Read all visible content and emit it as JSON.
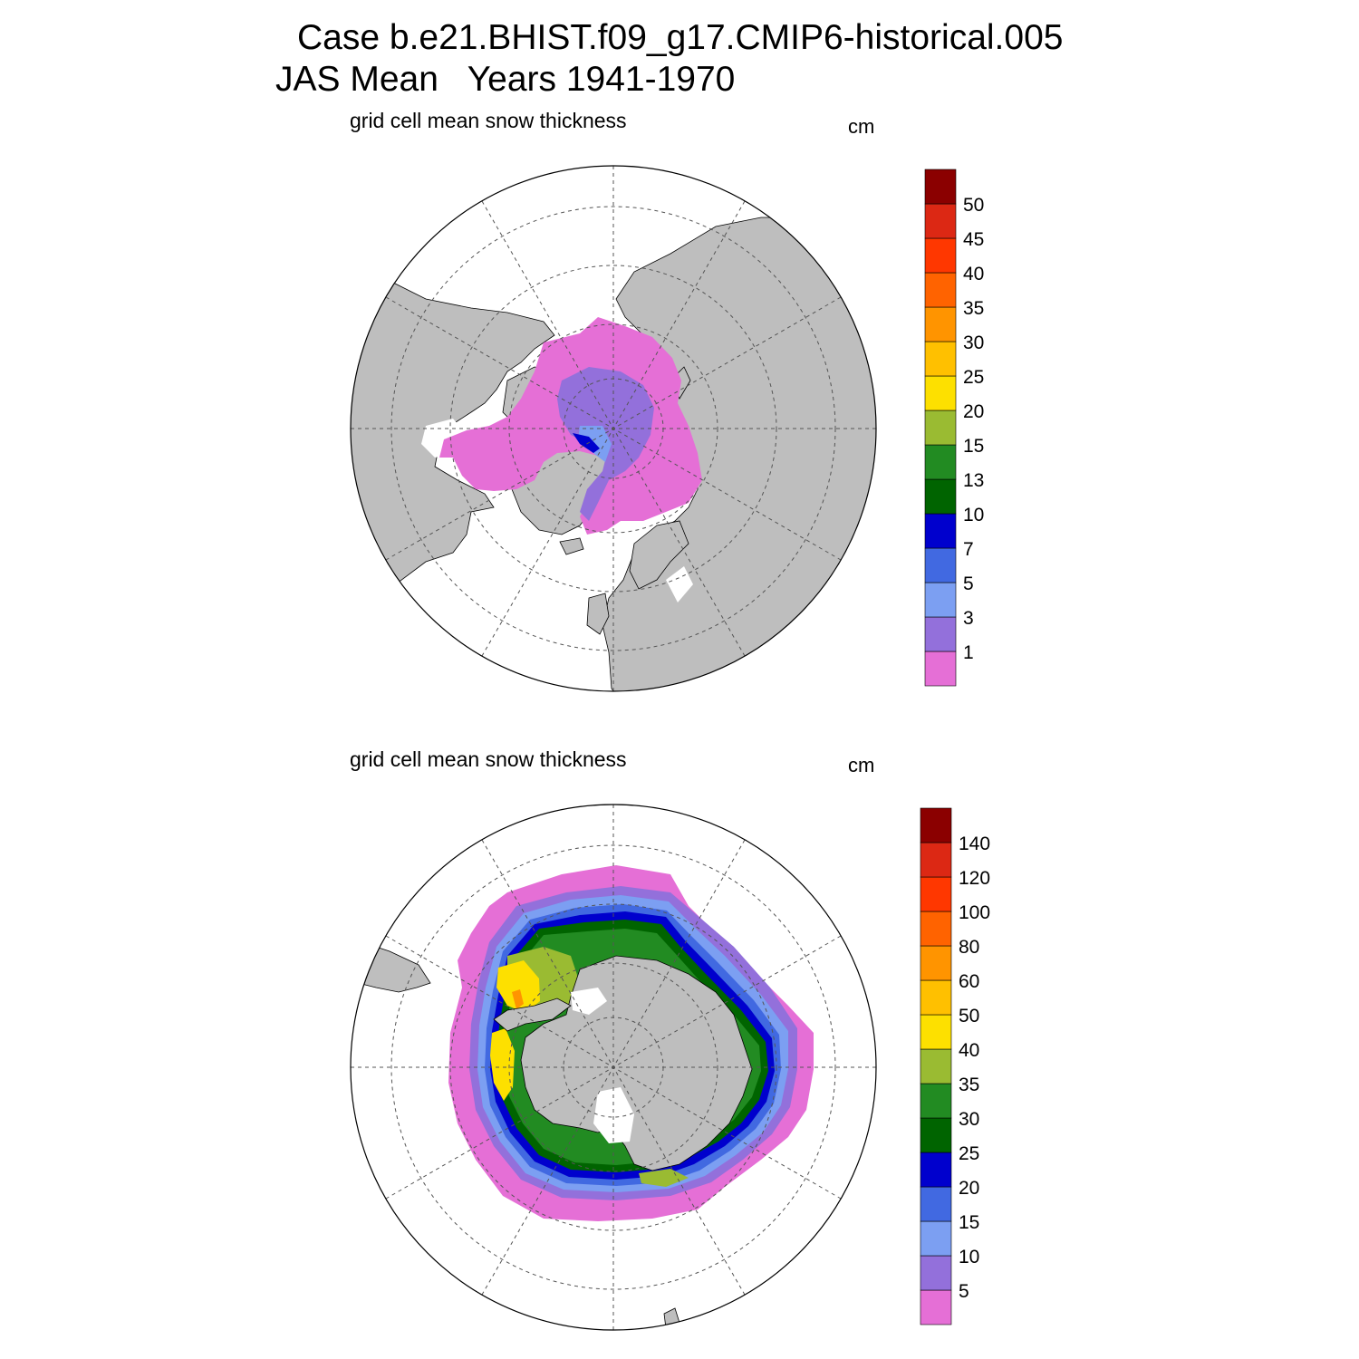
{
  "title_line1": "Case b.e21.BHIST.f09_g17.CMIP6-historical.005",
  "title_line2": "JAS Mean   Years 1941-1970",
  "panels": [
    {
      "subtitle": "grid cell mean snow thickness",
      "units": "cm",
      "hemisphere": "north",
      "colorbar": {
        "labels": [
          "1",
          "3",
          "5",
          "7",
          "10",
          "13",
          "15",
          "20",
          "25",
          "30",
          "35",
          "40",
          "45",
          "50"
        ],
        "colors": [
          "#e56fd6",
          "#9370db",
          "#7c9ff2",
          "#4169e1",
          "#0000cd",
          "#006400",
          "#228b22",
          "#9abb32",
          "#fde000",
          "#ffc000",
          "#ff9400",
          "#ff6300",
          "#ff3700",
          "#dc2814",
          "#8b0000"
        ]
      }
    },
    {
      "subtitle": "grid cell mean snow thickness",
      "units": "cm",
      "hemisphere": "south",
      "colorbar": {
        "labels": [
          "5",
          "10",
          "15",
          "20",
          "25",
          "30",
          "35",
          "40",
          "50",
          "60",
          "80",
          "100",
          "120",
          "140"
        ],
        "colors": [
          "#e56fd6",
          "#9370db",
          "#7c9ff2",
          "#4169e1",
          "#0000cd",
          "#006400",
          "#228b22",
          "#9abb32",
          "#fde000",
          "#ffc000",
          "#ff9400",
          "#ff6300",
          "#ff3700",
          "#dc2814",
          "#8b0000"
        ]
      }
    }
  ],
  "colors": {
    "land": "#bebebe",
    "ocean": "#ffffff",
    "grid": "#555555"
  }
}
